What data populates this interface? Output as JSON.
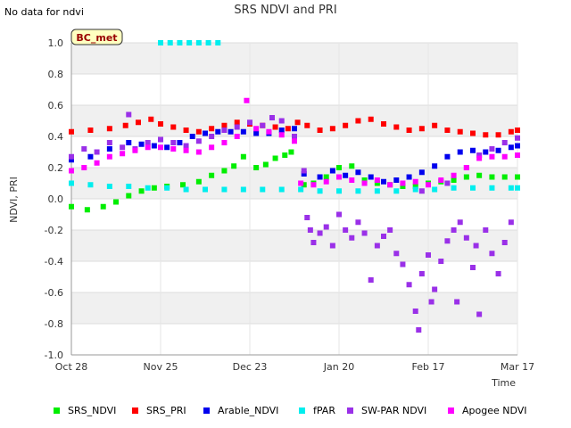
{
  "header": {
    "nodata_text": "No data for ndvi",
    "title": "SRS NDVI and PRI"
  },
  "chart_data": {
    "type": "scatter",
    "title": "SRS NDVI and PRI",
    "xlabel": "Time",
    "ylabel": "NDVI, PRI",
    "ylim": [
      -1.0,
      1.0
    ],
    "yticks": [
      "-1.0",
      "-0.8",
      "-0.6",
      "-0.4",
      "-0.2",
      "0.0",
      "0.2",
      "0.4",
      "0.6",
      "0.8",
      "1.0"
    ],
    "x_start": "Oct 28",
    "x_end": "Mar 17",
    "xticks": [
      "Oct 28",
      "Nov 25",
      "Dec 23",
      "Jan 20",
      "Feb 17",
      "Mar 17"
    ],
    "grid": true,
    "legend_position": "bottom",
    "site_badge": "BC_met",
    "series": [
      {
        "name": "SRS_NDVI",
        "color": "#00ee00",
        "points": [
          [
            0,
            -0.05
          ],
          [
            5,
            -0.07
          ],
          [
            10,
            -0.05
          ],
          [
            14,
            -0.02
          ],
          [
            18,
            0.02
          ],
          [
            22,
            0.05
          ],
          [
            26,
            0.07
          ],
          [
            30,
            0.08
          ],
          [
            35,
            0.09
          ],
          [
            40,
            0.11
          ],
          [
            44,
            0.15
          ],
          [
            48,
            0.18
          ],
          [
            51,
            0.21
          ],
          [
            54,
            0.27
          ],
          [
            58,
            0.2
          ],
          [
            61,
            0.22
          ],
          [
            64,
            0.26
          ],
          [
            67,
            0.28
          ],
          [
            69,
            0.3
          ],
          [
            73,
            0.09
          ],
          [
            76,
            0.1
          ],
          [
            80,
            0.14
          ],
          [
            84,
            0.2
          ],
          [
            88,
            0.21
          ],
          [
            92,
            0.12
          ],
          [
            96,
            0.1
          ],
          [
            100,
            0.09
          ],
          [
            104,
            0.08
          ],
          [
            108,
            0.08
          ],
          [
            112,
            0.1
          ],
          [
            116,
            0.11
          ],
          [
            120,
            0.12
          ],
          [
            124,
            0.14
          ],
          [
            128,
            0.15
          ],
          [
            132,
            0.14
          ],
          [
            136,
            0.14
          ],
          [
            140,
            0.14
          ]
        ]
      },
      {
        "name": "SRS_PRI",
        "color": "#ff0000",
        "points": [
          [
            0,
            0.43
          ],
          [
            6,
            0.44
          ],
          [
            12,
            0.45
          ],
          [
            17,
            0.47
          ],
          [
            21,
            0.49
          ],
          [
            25,
            0.51
          ],
          [
            28,
            0.48
          ],
          [
            32,
            0.46
          ],
          [
            36,
            0.44
          ],
          [
            40,
            0.43
          ],
          [
            44,
            0.45
          ],
          [
            48,
            0.47
          ],
          [
            52,
            0.49
          ],
          [
            56,
            0.48
          ],
          [
            60,
            0.47
          ],
          [
            64,
            0.46
          ],
          [
            68,
            0.45
          ],
          [
            71,
            0.49
          ],
          [
            74,
            0.47
          ],
          [
            78,
            0.44
          ],
          [
            82,
            0.45
          ],
          [
            86,
            0.47
          ],
          [
            90,
            0.5
          ],
          [
            94,
            0.51
          ],
          [
            98,
            0.48
          ],
          [
            102,
            0.46
          ],
          [
            106,
            0.44
          ],
          [
            110,
            0.45
          ],
          [
            114,
            0.47
          ],
          [
            118,
            0.44
          ],
          [
            122,
            0.43
          ],
          [
            126,
            0.42
          ],
          [
            130,
            0.41
          ],
          [
            134,
            0.41
          ],
          [
            138,
            0.43
          ],
          [
            140,
            0.44
          ]
        ]
      },
      {
        "name": "Arable_NDVI",
        "color": "#0000ee",
        "points": [
          [
            0,
            0.25
          ],
          [
            6,
            0.27
          ],
          [
            12,
            0.32
          ],
          [
            18,
            0.36
          ],
          [
            22,
            0.35
          ],
          [
            26,
            0.34
          ],
          [
            30,
            0.33
          ],
          [
            34,
            0.36
          ],
          [
            38,
            0.4
          ],
          [
            42,
            0.42
          ],
          [
            46,
            0.43
          ],
          [
            50,
            0.43
          ],
          [
            54,
            0.43
          ],
          [
            58,
            0.42
          ],
          [
            62,
            0.42
          ],
          [
            66,
            0.44
          ],
          [
            70,
            0.45
          ],
          [
            73,
            0.16
          ],
          [
            78,
            0.14
          ],
          [
            82,
            0.18
          ],
          [
            86,
            0.15
          ],
          [
            90,
            0.17
          ],
          [
            94,
            0.14
          ],
          [
            98,
            0.11
          ],
          [
            102,
            0.12
          ],
          [
            106,
            0.14
          ],
          [
            110,
            0.17
          ],
          [
            114,
            0.21
          ],
          [
            118,
            0.27
          ],
          [
            122,
            0.3
          ],
          [
            126,
            0.31
          ],
          [
            130,
            0.3
          ],
          [
            134,
            0.31
          ],
          [
            138,
            0.33
          ],
          [
            140,
            0.34
          ]
        ]
      },
      {
        "name": "fPAR",
        "color": "#00eeee",
        "points": [
          [
            0,
            0.1
          ],
          [
            6,
            0.09
          ],
          [
            12,
            0.08
          ],
          [
            18,
            0.08
          ],
          [
            24,
            0.07
          ],
          [
            30,
            0.07
          ],
          [
            36,
            0.06
          ],
          [
            42,
            0.06
          ],
          [
            48,
            0.06
          ],
          [
            54,
            0.06
          ],
          [
            60,
            0.06
          ],
          [
            66,
            0.06
          ],
          [
            72,
            0.06
          ],
          [
            78,
            0.05
          ],
          [
            84,
            0.05
          ],
          [
            90,
            0.05
          ],
          [
            96,
            0.05
          ],
          [
            102,
            0.05
          ],
          [
            108,
            0.06
          ],
          [
            114,
            0.06
          ],
          [
            120,
            0.07
          ],
          [
            126,
            0.07
          ],
          [
            132,
            0.07
          ],
          [
            138,
            0.07
          ],
          [
            140,
            0.07
          ],
          [
            28,
            1.0
          ],
          [
            31,
            1.0
          ],
          [
            34,
            1.0
          ],
          [
            37,
            1.0
          ],
          [
            40,
            1.0
          ],
          [
            43,
            1.0
          ],
          [
            46,
            1.0
          ]
        ]
      },
      {
        "name": "SW-PAR NDVI",
        "color": "#9a30e8",
        "points": [
          [
            0,
            0.27
          ],
          [
            4,
            0.32
          ],
          [
            8,
            0.3
          ],
          [
            12,
            0.36
          ],
          [
            16,
            0.33
          ],
          [
            18,
            0.54
          ],
          [
            20,
            0.32
          ],
          [
            24,
            0.36
          ],
          [
            28,
            0.38
          ],
          [
            32,
            0.36
          ],
          [
            36,
            0.34
          ],
          [
            40,
            0.37
          ],
          [
            44,
            0.4
          ],
          [
            48,
            0.44
          ],
          [
            52,
            0.46
          ],
          [
            56,
            0.49
          ],
          [
            60,
            0.47
          ],
          [
            63,
            0.52
          ],
          [
            66,
            0.5
          ],
          [
            70,
            0.4
          ],
          [
            73,
            0.18
          ],
          [
            74,
            -0.12
          ],
          [
            75,
            -0.2
          ],
          [
            76,
            -0.28
          ],
          [
            78,
            -0.22
          ],
          [
            80,
            -0.18
          ],
          [
            82,
            -0.3
          ],
          [
            84,
            -0.1
          ],
          [
            86,
            -0.2
          ],
          [
            88,
            -0.25
          ],
          [
            90,
            -0.15
          ],
          [
            92,
            -0.22
          ],
          [
            94,
            -0.52
          ],
          [
            96,
            -0.3
          ],
          [
            98,
            -0.24
          ],
          [
            100,
            -0.2
          ],
          [
            102,
            -0.35
          ],
          [
            104,
            -0.42
          ],
          [
            106,
            -0.55
          ],
          [
            108,
            -0.72
          ],
          [
            109,
            -0.84
          ],
          [
            110,
            -0.48
          ],
          [
            112,
            -0.36
          ],
          [
            113,
            -0.66
          ],
          [
            114,
            -0.58
          ],
          [
            116,
            -0.4
          ],
          [
            118,
            -0.27
          ],
          [
            120,
            -0.2
          ],
          [
            121,
            -0.66
          ],
          [
            122,
            -0.15
          ],
          [
            124,
            -0.25
          ],
          [
            126,
            -0.44
          ],
          [
            127,
            -0.3
          ],
          [
            128,
            -0.74
          ],
          [
            130,
            -0.2
          ],
          [
            132,
            -0.35
          ],
          [
            134,
            -0.48
          ],
          [
            136,
            -0.28
          ],
          [
            138,
            -0.15
          ],
          [
            110,
            0.05
          ],
          [
            118,
            0.1
          ],
          [
            124,
            0.2
          ],
          [
            128,
            0.28
          ],
          [
            132,
            0.32
          ],
          [
            136,
            0.36
          ],
          [
            140,
            0.39
          ]
        ]
      },
      {
        "name": "Apogee NDVI",
        "color": "#ff00ff",
        "points": [
          [
            0,
            0.18
          ],
          [
            4,
            0.2
          ],
          [
            8,
            0.23
          ],
          [
            12,
            0.27
          ],
          [
            16,
            0.29
          ],
          [
            20,
            0.31
          ],
          [
            24,
            0.33
          ],
          [
            28,
            0.33
          ],
          [
            32,
            0.32
          ],
          [
            36,
            0.31
          ],
          [
            40,
            0.3
          ],
          [
            44,
            0.33
          ],
          [
            48,
            0.36
          ],
          [
            52,
            0.4
          ],
          [
            55,
            0.63
          ],
          [
            58,
            0.45
          ],
          [
            62,
            0.43
          ],
          [
            66,
            0.41
          ],
          [
            70,
            0.37
          ],
          [
            72,
            0.1
          ],
          [
            76,
            0.09
          ],
          [
            80,
            0.11
          ],
          [
            84,
            0.14
          ],
          [
            88,
            0.12
          ],
          [
            92,
            0.1
          ],
          [
            96,
            0.12
          ],
          [
            100,
            0.09
          ],
          [
            104,
            0.1
          ],
          [
            108,
            0.11
          ],
          [
            112,
            0.09
          ],
          [
            116,
            0.12
          ],
          [
            120,
            0.15
          ],
          [
            124,
            0.2
          ],
          [
            128,
            0.26
          ],
          [
            132,
            0.27
          ],
          [
            136,
            0.27
          ],
          [
            140,
            0.28
          ]
        ]
      }
    ]
  }
}
